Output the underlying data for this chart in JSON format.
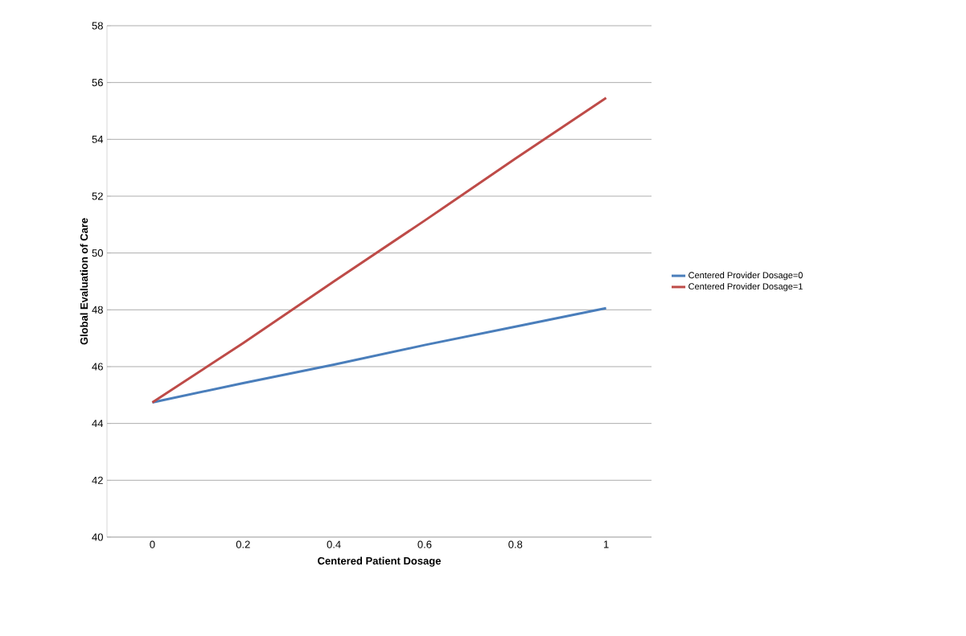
{
  "chart_data": {
    "type": "line",
    "xlabel": "Centered Patient Dosage",
    "ylabel": "Global Evaluation of Care",
    "categories": [
      "0",
      "0.2",
      "0.4",
      "0.6",
      "0.8",
      "1"
    ],
    "series": [
      {
        "name": "Centered Provider Dosage=0",
        "color": "#4a7ebb",
        "values": [
          44.74,
          45.42,
          46.07,
          46.76,
          47.41,
          48.06
        ]
      },
      {
        "name": "Centered Provider Dosage=1",
        "color": "#be4b48",
        "values": [
          44.74,
          46.83,
          49.0,
          51.14,
          53.32,
          55.46
        ]
      }
    ],
    "ylim": [
      40,
      58
    ],
    "yticks": [
      40,
      42,
      44,
      46,
      48,
      50,
      52,
      54,
      56,
      58
    ],
    "grid": "y",
    "legend": "right",
    "marker": "none",
    "line_style": "solid"
  }
}
